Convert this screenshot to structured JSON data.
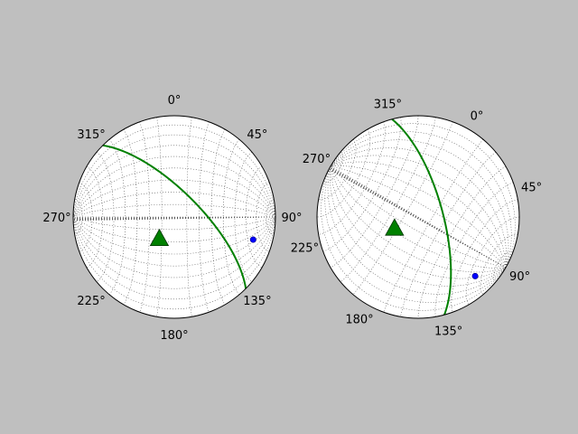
{
  "figure": {
    "background": "#bfbfbf"
  },
  "chart_data": [
    {
      "type": "stereonet",
      "projection": "equal-area",
      "title": "",
      "grid": true,
      "plane_color": "#008000",
      "pole_color": "#0000ff",
      "point_color": "#008000",
      "azimuth_ticks": [
        "0°",
        "45°",
        "90°",
        "135°",
        "180°",
        "225°",
        "270°",
        "315°"
      ],
      "rotation_deg": 0,
      "planes": [
        {
          "strike": 315,
          "dip": 70
        }
      ],
      "poles": [
        {
          "trend": 106,
          "plunge": 20
        }
      ],
      "points": [
        {
          "trend": 215,
          "plunge": 69,
          "marker": "triangle"
        }
      ]
    },
    {
      "type": "stereonet",
      "projection": "equal-area",
      "title": "",
      "grid": true,
      "plane_color": "#008000",
      "pole_color": "#0000ff",
      "point_color": "#008000",
      "azimuth_ticks": [
        "0°",
        "45°",
        "90°",
        "135°",
        "180°",
        "225°",
        "270°",
        "315°"
      ],
      "rotation_deg": 30,
      "planes": [
        {
          "strike": 315,
          "dip": 70
        }
      ],
      "poles": [
        {
          "trend": 106,
          "plunge": 20
        }
      ],
      "points": [
        {
          "trend": 215,
          "plunge": 69,
          "marker": "triangle"
        }
      ]
    }
  ]
}
